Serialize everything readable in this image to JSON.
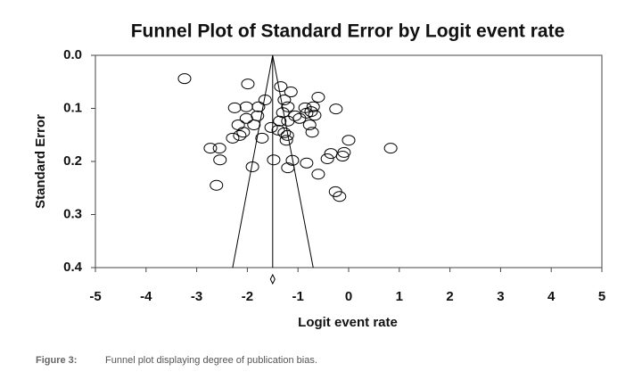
{
  "chart_data": {
    "type": "scatter",
    "title": "Funnel Plot of Standard Error by Logit event rate",
    "x_label": "Logit event rate",
    "y_label": "Standard Error",
    "xlim": [
      -5,
      5
    ],
    "xticks": [
      -5,
      -4,
      -3,
      -2,
      -1,
      0,
      1,
      2,
      3,
      4,
      5
    ],
    "ylim": [
      0,
      0.4
    ],
    "y_inverted": true,
    "yticks": [
      {
        "value": 0,
        "label": "0.0"
      },
      0.1,
      0.2,
      0.3,
      0.4
    ],
    "pooled_estimate": -1.5,
    "funnel_bounds": [
      -2.29,
      -0.7
    ],
    "color": "#000000",
    "x": [
      -3.24,
      -1.99,
      -1.34,
      -1.14,
      -0.6,
      -1.65,
      -2.02,
      -2.25,
      -1.78,
      -1.27,
      -1.2,
      -0.86,
      -0.7,
      -0.25,
      -0.83,
      -0.74,
      -0.67,
      -1.3,
      -1.06,
      -1.8,
      -2.02,
      -2.18,
      -1.87,
      -1.36,
      -1.2,
      -0.97,
      -0.77,
      -1.53,
      -1.39,
      -1.27,
      -1.21,
      -1.23,
      -0.72,
      -2.08,
      -2.15,
      -2.29,
      -1.71,
      0.0,
      0.83,
      -2.73,
      -2.55,
      -2.54,
      -0.35,
      -0.09,
      -0.12,
      -0.42,
      -0.83,
      -1.11,
      -1.48,
      -1.2,
      -1.9,
      -0.6,
      -2.61,
      -0.26,
      -0.18
    ],
    "values": [
      0.044,
      0.054,
      0.059,
      0.069,
      0.079,
      0.084,
      0.097,
      0.099,
      0.097,
      0.084,
      0.097,
      0.099,
      0.097,
      0.101,
      0.109,
      0.106,
      0.113,
      0.108,
      0.114,
      0.114,
      0.119,
      0.131,
      0.131,
      0.124,
      0.124,
      0.119,
      0.131,
      0.136,
      0.141,
      0.146,
      0.151,
      0.16,
      0.145,
      0.145,
      0.151,
      0.156,
      0.156,
      0.16,
      0.175,
      0.175,
      0.175,
      0.197,
      0.185,
      0.183,
      0.19,
      0.195,
      0.203,
      0.198,
      0.197,
      0.212,
      0.21,
      0.224,
      0.245,
      0.257,
      0.266
    ]
  },
  "figure_label": "Figure 3:",
  "caption": "Funnel plot displaying degree of publication bias."
}
